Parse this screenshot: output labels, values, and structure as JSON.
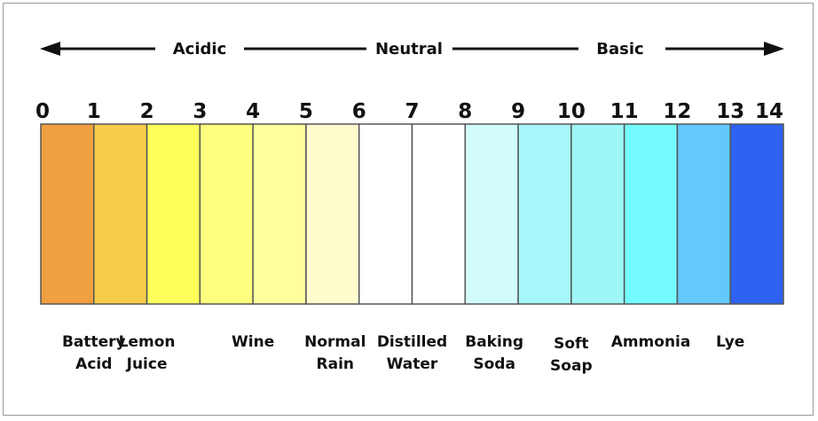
{
  "header": {
    "acidic": "Acidic",
    "neutral": "Neutral",
    "basic": "Basic"
  },
  "scale": {
    "ticks": [
      "0",
      "1",
      "2",
      "3",
      "4",
      "5",
      "6",
      "7",
      "8",
      "9",
      "10",
      "11",
      "12",
      "13",
      "14"
    ],
    "colors": [
      "#f0a040",
      "#f7cc4a",
      "#ffff5c",
      "#feff7e",
      "#ffff9e",
      "#fffcce",
      "#ffffff",
      "#ffffff",
      "#d2fcfc",
      "#a6f7f9",
      "#9ef6f6",
      "#73fbfd",
      "#63c8fb",
      "#2d62f2"
    ]
  },
  "examples": [
    {
      "name": "battery-acid",
      "lines": [
        "Battery",
        "Acid"
      ],
      "ph": 1
    },
    {
      "name": "lemon-juice",
      "lines": [
        "Lemon",
        "Juice"
      ],
      "ph": 2
    },
    {
      "name": "wine",
      "lines": [
        "Wine"
      ],
      "ph": 4
    },
    {
      "name": "normal-rain",
      "lines": [
        "Normal",
        "Rain"
      ],
      "ph": 5.55
    },
    {
      "name": "distilled-water",
      "lines": [
        "Distilled",
        "Water"
      ],
      "ph": 7
    },
    {
      "name": "baking-soda",
      "lines": [
        "Baking",
        "Soda"
      ],
      "ph": 8.55
    },
    {
      "name": "soft-soap",
      "lines": [
        "Soft",
        "Soap"
      ],
      "ph": 10
    },
    {
      "name": "ammonia",
      "lines": [
        "Ammonia"
      ],
      "ph": 11.5
    },
    {
      "name": "lye",
      "lines": [
        "Lye"
      ],
      "ph": 13
    }
  ]
}
